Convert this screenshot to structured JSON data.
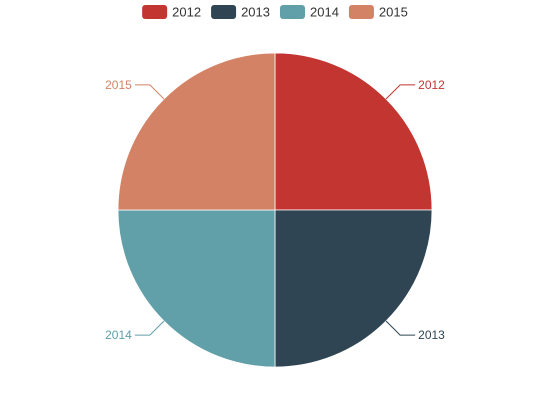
{
  "chart_data": {
    "type": "pie",
    "legend_position": "top-center",
    "categories": [
      "2012",
      "2013",
      "2014",
      "2015"
    ],
    "values": [
      25,
      25,
      25,
      25
    ],
    "colors": [
      "#c23531",
      "#2f4554",
      "#61a0a8",
      "#d48265"
    ],
    "labels": [
      "2012",
      "2013",
      "2014",
      "2015"
    ],
    "start_angle_deg": 90,
    "direction": "clockwise"
  }
}
